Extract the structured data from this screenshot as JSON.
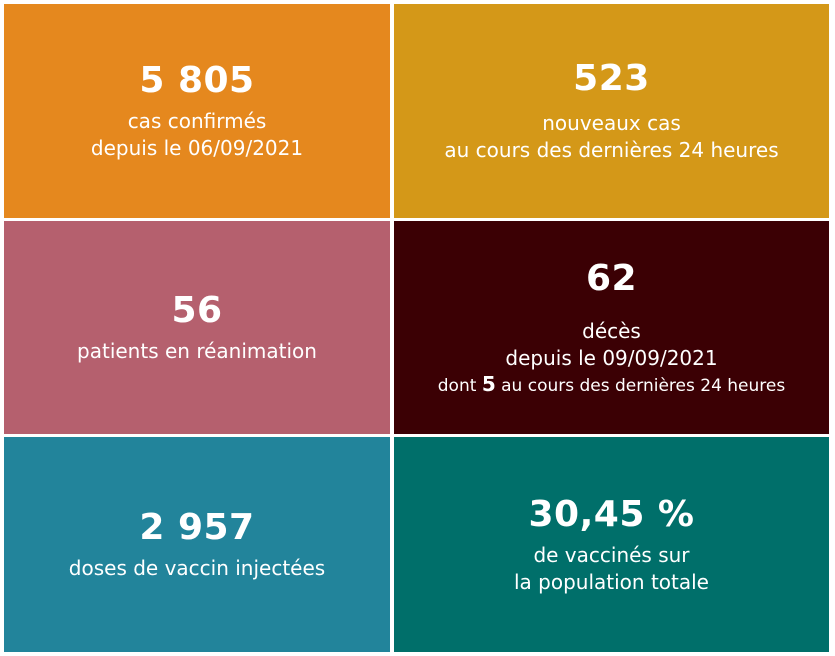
{
  "tiles": {
    "cases": {
      "value": "5 805",
      "line1": "cas confirmés",
      "line2": "depuis le 06/09/2021",
      "color": "#E5881E"
    },
    "new_cases": {
      "value": "523",
      "line1": "nouveaux cas",
      "line2": "au cours des dernières 24 heures",
      "color": "#D49818"
    },
    "icu": {
      "value": "56",
      "line1": "patients en réanimation",
      "color": "#B5606E"
    },
    "deaths": {
      "value": "62",
      "line1": "décès",
      "line2": "depuis le 09/09/2021",
      "line3_prefix": "dont",
      "line3_number": "5",
      "line3_suffix": "au cours des dernières 24 heures",
      "color": "#3B0004"
    },
    "doses": {
      "value": "2 957",
      "line1": "doses de vaccin injectées",
      "color": "#22849B"
    },
    "vaccinated": {
      "value": "30,45 %",
      "line1": "de vaccinés sur",
      "line2": "la population totale",
      "color": "#006F6A"
    }
  }
}
